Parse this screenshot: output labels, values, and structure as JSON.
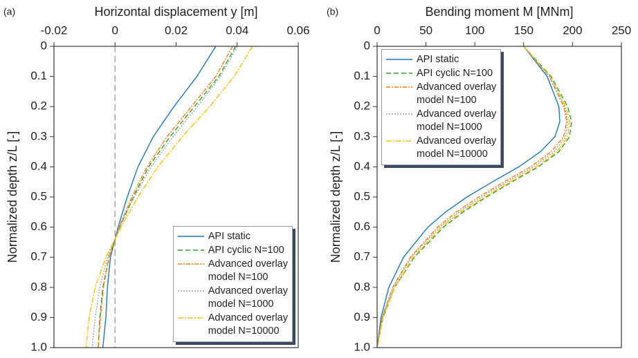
{
  "chart_data": [
    {
      "type": "line",
      "panel_label": "(a)",
      "xlabel": "Horizontal displacement y [m]",
      "ylabel": "Normalized depth z/L [-]",
      "xlim": [
        -0.02,
        0.06
      ],
      "xticks": [
        -0.02,
        0,
        0.02,
        0.04,
        0.06
      ],
      "ylim": [
        0,
        1
      ],
      "yticks": [
        0,
        0.1,
        0.2,
        0.3,
        0.4,
        0.5,
        0.6,
        0.7,
        0.8,
        0.9,
        {
          "value": 1,
          "label": "1.0"
        }
      ],
      "y_inverted": true,
      "zero_line": true,
      "legend": "lower right",
      "depth": [
        0,
        0.1,
        0.2,
        0.3,
        0.4,
        0.5,
        0.6,
        0.7,
        0.8,
        0.9,
        1
      ],
      "series": [
        {
          "name": "API static",
          "color": "#1f77b4",
          "dash": "none",
          "values": [
            0.033,
            0.0268,
            0.0193,
            0.0125,
            0.0075,
            0.004,
            0.001,
            -0.0015,
            -0.0025,
            -0.003,
            -0.004
          ]
        },
        {
          "name": "API cyclic N=100",
          "color": "#2ca02c",
          "dash": "7 4",
          "values": [
            0.0395,
            0.034,
            0.026,
            0.018,
            0.011,
            0.006,
            0.0015,
            -0.002,
            -0.004,
            -0.005,
            -0.0055
          ]
        },
        {
          "name": "Advanced overlay\nmodel N=100",
          "color": "#ff7f0e",
          "dash": "6 2 2 2",
          "values": [
            0.0385,
            0.033,
            0.025,
            0.017,
            0.0105,
            0.0055,
            0.0013,
            -0.002,
            -0.0038,
            -0.0048,
            -0.0055
          ]
        },
        {
          "name": "Advanced overlay\nmodel N=1000",
          "color": "#a0a0a0",
          "dash": "2 2",
          "values": [
            0.04,
            0.0345,
            0.027,
            0.019,
            0.0118,
            0.0063,
            0.0016,
            -0.0025,
            -0.005,
            -0.0065,
            -0.0075
          ]
        },
        {
          "name": "Advanced overlay\nmodel N=10000",
          "color": "#ffc000",
          "dash": "8 2 2 2",
          "values": [
            0.045,
            0.039,
            0.031,
            0.022,
            0.014,
            0.0075,
            0.002,
            -0.003,
            -0.0065,
            -0.0085,
            -0.0095
          ]
        }
      ]
    },
    {
      "type": "line",
      "panel_label": "(b)",
      "xlabel": "Bending moment M [MNm]",
      "ylabel": "Normalized depth z/L [-]",
      "xlim": [
        0,
        250
      ],
      "xticks": [
        0,
        50,
        100,
        150,
        200,
        250
      ],
      "ylim": [
        0,
        1
      ],
      "yticks": [
        0,
        0.1,
        0.2,
        0.3,
        0.4,
        0.5,
        0.6,
        0.7,
        0.8,
        0.9,
        {
          "value": 1,
          "label": "1.0"
        }
      ],
      "y_inverted": true,
      "zero_line": false,
      "legend": "upper left",
      "depth": [
        0,
        0.1,
        0.2,
        0.25,
        0.3,
        0.35,
        0.4,
        0.45,
        0.5,
        0.55,
        0.6,
        0.7,
        0.8,
        0.9,
        1
      ],
      "series": [
        {
          "name": "API static",
          "color": "#1f77b4",
          "dash": "none",
          "values": [
            150,
            174,
            186,
            187,
            182,
            167,
            145,
            118,
            92,
            70,
            52,
            27,
            12,
            4,
            0
          ]
        },
        {
          "name": "API cyclic N=100",
          "color": "#2ca02c",
          "dash": "7 4",
          "values": [
            150,
            178,
            195,
            199,
            197,
            186,
            165,
            138,
            112,
            88,
            68,
            38,
            18,
            6,
            0
          ]
        },
        {
          "name": "Advanced overlay\nmodel N=100",
          "color": "#ff7f0e",
          "dash": "6 2 2 2",
          "values": [
            150,
            176,
            191,
            194,
            191,
            178,
            157,
            130,
            104,
            81,
            62,
            34,
            16,
            5,
            0
          ]
        },
        {
          "name": "Advanced overlay\nmodel N=1000",
          "color": "#a0a0a0",
          "dash": "2 2",
          "values": [
            150,
            176,
            192,
            195,
            193,
            181,
            160,
            133,
            107,
            84,
            64,
            35,
            17,
            5,
            0
          ]
        },
        {
          "name": "Advanced overlay\nmodel N=10000",
          "color": "#ffc000",
          "dash": "8 2 2 2",
          "values": [
            150,
            177,
            193,
            197,
            195,
            184,
            163,
            136,
            110,
            86,
            66,
            37,
            18,
            6,
            0
          ]
        }
      ]
    }
  ]
}
